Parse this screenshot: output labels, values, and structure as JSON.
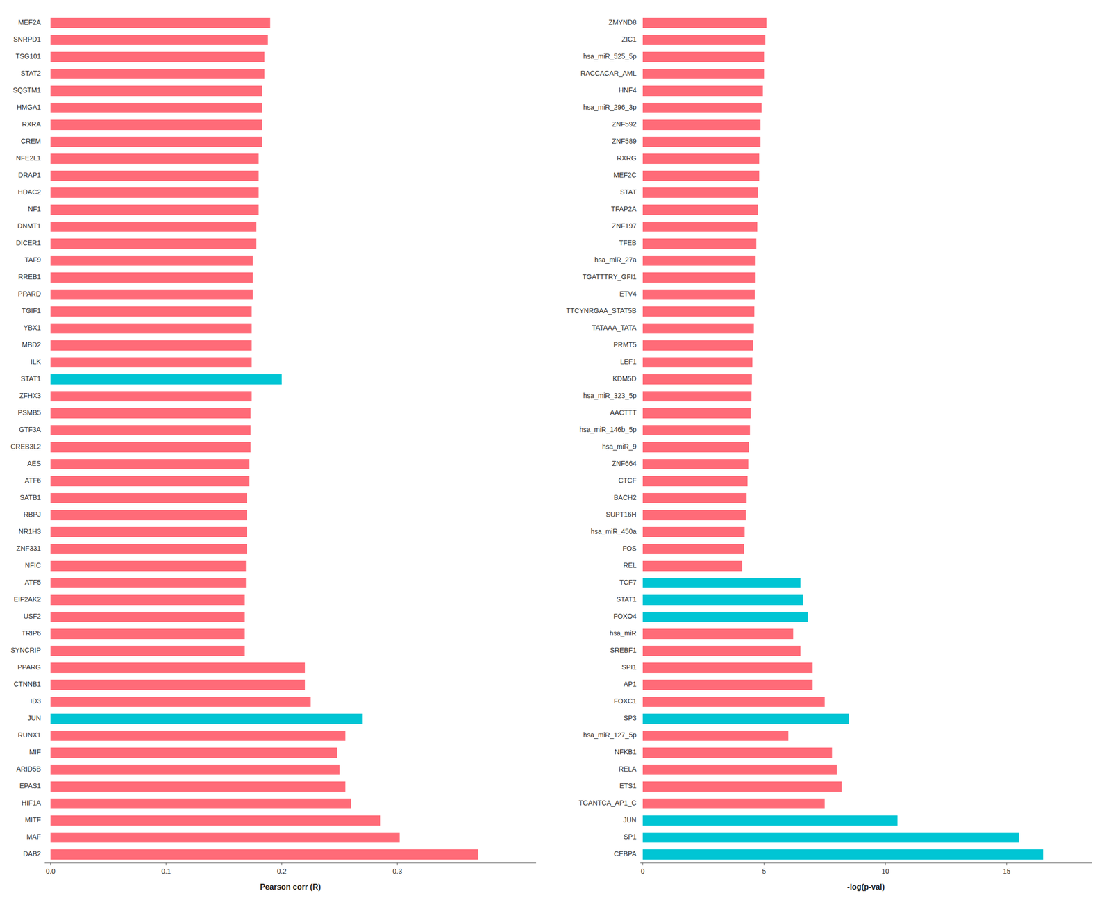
{
  "chart_data": [
    {
      "type": "bar",
      "orientation": "horizontal",
      "categories": [
        "MEF2A",
        "SNRPD1",
        "TSG101",
        "STAT2",
        "SQSTM1",
        "HMGA1",
        "RXRA",
        "CREM",
        "NFE2L1",
        "DRAP1",
        "HDAC2",
        "NF1",
        "DNMT1",
        "DICER1",
        "TAF9",
        "RREB1",
        "PPARD",
        "TGIF1",
        "YBX1",
        "MBD2",
        "ILK",
        "STAT1",
        "ZFHX3",
        "PSMB5",
        "GTF3A",
        "CREB3L2",
        "AES",
        "ATF6",
        "SATB1",
        "RBPJ",
        "NR1H3",
        "ZNF331",
        "NFIC",
        "ATF5",
        "EIF2AK2",
        "USF2",
        "TRIP6",
        "SYNCRIP",
        "PPARG",
        "CTNNB1",
        "ID3",
        "JUN",
        "RUNX1",
        "MIF",
        "ARID5B",
        "EPAS1",
        "HIF1A",
        "MITF",
        "MAF",
        "DAB2"
      ],
      "values": [
        0.19,
        0.188,
        0.185,
        0.185,
        0.183,
        0.183,
        0.183,
        0.183,
        0.18,
        0.18,
        0.18,
        0.18,
        0.178,
        0.178,
        0.175,
        0.175,
        0.175,
        0.174,
        0.174,
        0.174,
        0.174,
        0.2,
        0.174,
        0.173,
        0.173,
        0.173,
        0.172,
        0.172,
        0.17,
        0.17,
        0.17,
        0.17,
        0.169,
        0.169,
        0.168,
        0.168,
        0.168,
        0.168,
        0.22,
        0.22,
        0.225,
        0.27,
        0.255,
        0.248,
        0.25,
        0.255,
        0.26,
        0.285,
        0.302,
        0.37
      ],
      "colors": [
        "#FF6B78",
        "#FF6B78",
        "#FF6B78",
        "#FF6B78",
        "#FF6B78",
        "#FF6B78",
        "#FF6B78",
        "#FF6B78",
        "#FF6B78",
        "#FF6B78",
        "#FF6B78",
        "#FF6B78",
        "#FF6B78",
        "#FF6B78",
        "#FF6B78",
        "#FF6B78",
        "#FF6B78",
        "#FF6B78",
        "#FF6B78",
        "#FF6B78",
        "#FF6B78",
        "#00C5D4",
        "#FF6B78",
        "#FF6B78",
        "#FF6B78",
        "#FF6B78",
        "#FF6B78",
        "#FF6B78",
        "#FF6B78",
        "#FF6B78",
        "#FF6B78",
        "#FF6B78",
        "#FF6B78",
        "#FF6B78",
        "#FF6B78",
        "#FF6B78",
        "#FF6B78",
        "#FF6B78",
        "#FF6B78",
        "#FF6B78",
        "#FF6B78",
        "#00C5D4",
        "#FF6B78",
        "#FF6B78",
        "#FF6B78",
        "#FF6B78",
        "#FF6B78",
        "#FF6B78",
        "#FF6B78",
        "#FF6B78"
      ],
      "xlabel": "Pearson corr (R)",
      "xlim": [
        -0.005,
        0.42
      ],
      "xticks": [
        {
          "value": 0,
          "label": "0.0"
        },
        0.1,
        0.2,
        0.3
      ],
      "grid": false
    },
    {
      "type": "bar",
      "orientation": "horizontal",
      "categories": [
        "ZMYND8",
        "ZIC1",
        "hsa_miR_525_5p",
        "RACCACAR_AML",
        "HNF4",
        "hsa_miR_296_3p",
        "ZNF592",
        "ZNF589",
        "RXRG",
        "MEF2C",
        "STAT",
        "TFAP2A",
        "ZNF197",
        "TFEB",
        "hsa_miR_27a",
        "TGATTTRY_GFI1",
        "ETV4",
        "TTCYNRGAA_STAT5B",
        "TATAAA_TATA",
        "PRMT5",
        "LEF1",
        "KDM5D",
        "hsa_miR_323_5p",
        "AACTTT",
        "hsa_miR_146b_5p",
        "hsa_miR_9",
        "ZNF664",
        "CTCF",
        "BACH2",
        "SUPT16H",
        "hsa_miR_450a",
        "FOS",
        "REL",
        "TCF7",
        "STAT1",
        "FOXO4",
        "hsa_miR",
        "SREBF1",
        "SPI1",
        "AP1",
        "FOXC1",
        "SP3",
        "hsa_miR_127_5p",
        "NFKB1",
        "RELA",
        "ETS1",
        "TGANTCA_AP1_C",
        "JUN",
        "SP1",
        "CEBPA"
      ],
      "values": [
        5.1,
        5.05,
        5.0,
        5.0,
        4.95,
        4.9,
        4.85,
        4.85,
        4.8,
        4.8,
        4.75,
        4.75,
        4.72,
        4.68,
        4.65,
        4.65,
        4.62,
        4.6,
        4.58,
        4.55,
        4.52,
        4.5,
        4.48,
        4.45,
        4.42,
        4.38,
        4.35,
        4.32,
        4.28,
        4.25,
        4.2,
        4.18,
        4.1,
        6.5,
        6.6,
        6.8,
        6.2,
        6.5,
        7.0,
        7.0,
        7.5,
        8.5,
        6.0,
        7.8,
        8.0,
        8.2,
        7.5,
        10.5,
        15.5,
        16.5
      ],
      "colors": [
        "#FF6B78",
        "#FF6B78",
        "#FF6B78",
        "#FF6B78",
        "#FF6B78",
        "#FF6B78",
        "#FF6B78",
        "#FF6B78",
        "#FF6B78",
        "#FF6B78",
        "#FF6B78",
        "#FF6B78",
        "#FF6B78",
        "#FF6B78",
        "#FF6B78",
        "#FF6B78",
        "#FF6B78",
        "#FF6B78",
        "#FF6B78",
        "#FF6B78",
        "#FF6B78",
        "#FF6B78",
        "#FF6B78",
        "#FF6B78",
        "#FF6B78",
        "#FF6B78",
        "#FF6B78",
        "#FF6B78",
        "#FF6B78",
        "#FF6B78",
        "#FF6B78",
        "#FF6B78",
        "#FF6B78",
        "#00C5D4",
        "#00C5D4",
        "#00C5D4",
        "#FF6B78",
        "#FF6B78",
        "#FF6B78",
        "#FF6B78",
        "#FF6B78",
        "#00C5D4",
        "#FF6B78",
        "#FF6B78",
        "#FF6B78",
        "#FF6B78",
        "#FF6B78",
        "#00C5D4",
        "#00C5D4",
        "#00C5D4"
      ],
      "xlabel": "-log(p-val)",
      "xlim": [
        -0.1,
        18.5
      ],
      "xticks": [
        0,
        5,
        10,
        15
      ],
      "grid": false
    }
  ]
}
